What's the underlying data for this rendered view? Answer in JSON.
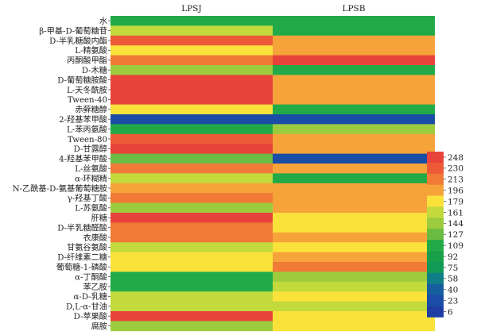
{
  "chart_data": {
    "type": "heatmap",
    "columns": [
      "LPSJ",
      "LPSB"
    ],
    "rows": [
      "水",
      "β-甲基-D-葡萄糖苷",
      "D-半乳糖酸内酯",
      "L-精氨酸",
      "丙酮酸甲酯",
      "D-木糖",
      "D-葡萄糖胺酸",
      "L-天冬酰胺",
      "Tween-40",
      "赤藓糖醇",
      "2-羟基苯甲酸",
      "L-苯丙氨酸",
      "Tween-80",
      "D-甘露醇",
      "4-羟基苯甲酸",
      "L-丝氨酸",
      "α-环糊精",
      "N-乙酰基-D-氨基葡萄糖胺",
      "γ-羟基丁酸",
      "L-苏氨酸",
      "肝糖",
      "D-半乳糖醛酸",
      "衣康酸",
      "甘氨谷氨酸",
      "D-纤维素二糖",
      "葡萄糖-1-磷酸",
      "α-丁酮酸",
      "苯乙胺",
      "α-D-乳糖",
      "D,L-α-甘油",
      "D-苹果酸",
      "腐胺"
    ],
    "values": [
      [
        109,
        109
      ],
      [
        161,
        109
      ],
      [
        230,
        196
      ],
      [
        179,
        196
      ],
      [
        213,
        248
      ],
      [
        144,
        109
      ],
      [
        248,
        196
      ],
      [
        248,
        196
      ],
      [
        248,
        196
      ],
      [
        179,
        109
      ],
      [
        23,
        23
      ],
      [
        109,
        144
      ],
      [
        230,
        196
      ],
      [
        248,
        196
      ],
      [
        127,
        23
      ],
      [
        213,
        196
      ],
      [
        161,
        109
      ],
      [
        196,
        196
      ],
      [
        213,
        196
      ],
      [
        144,
        196
      ],
      [
        248,
        179
      ],
      [
        213,
        179
      ],
      [
        213,
        196
      ],
      [
        161,
        179
      ],
      [
        179,
        196
      ],
      [
        179,
        213
      ],
      [
        109,
        144
      ],
      [
        109,
        161
      ],
      [
        161,
        179
      ],
      [
        161,
        161
      ],
      [
        248,
        179
      ],
      [
        144,
        179
      ]
    ],
    "legend_ticks": [
      248,
      230,
      213,
      196,
      179,
      161,
      144,
      127,
      109,
      92,
      75,
      58,
      40,
      23,
      6
    ],
    "legend_colors": [
      "#e8433a",
      "#ee5a38",
      "#f07a36",
      "#f6a33a",
      "#fae23a",
      "#c2da3c",
      "#9ccc3e",
      "#6abc42",
      "#22aa48",
      "#17a049",
      "#119a55",
      "#0f7e86",
      "#155f9f",
      "#1a4da6",
      "#1e3ea3"
    ],
    "value_range": [
      6,
      248
    ],
    "legend_position": "right"
  }
}
